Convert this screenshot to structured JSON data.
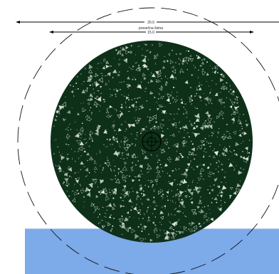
{
  "dimensions": {
    "outer_value": "20.0",
    "inner_caption": "prosečna širina",
    "inner_value": "15.0"
  },
  "colors": {
    "disc_fill": "#0e3019",
    "disc_speckle": "#e8efe6",
    "water": "#7daae9",
    "water_edge": "#a9c6ee",
    "outline_stroke": "#111111"
  },
  "icons": {
    "center_marker": "crosshair-circle-icon",
    "arrow": "arrowhead-icon"
  }
}
